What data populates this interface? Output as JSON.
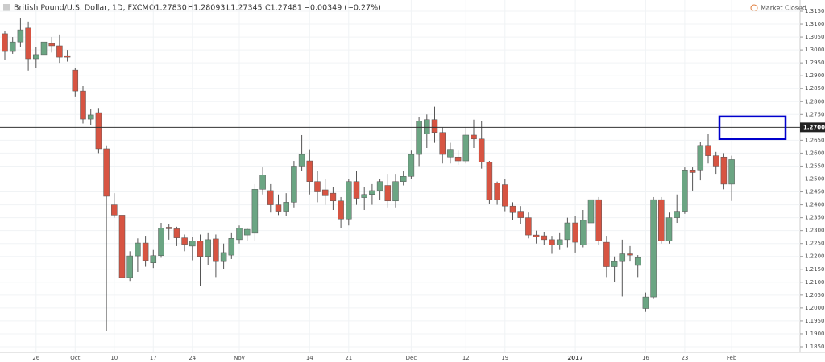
{
  "header": {
    "symbol": "British Pound/U.S. Dollar, 1D, FXCM",
    "open": "O1.27830",
    "high": "H1.28093",
    "low": "L1.27345",
    "close": "C1.27481",
    "change": "−0.00349 (−0.27%)",
    "status": "Market Closed"
  },
  "chart_data": {
    "type": "candlestick",
    "up_color": "#6ba583",
    "down_color": "#d75442",
    "grid": true,
    "ylim": [
      1.185,
      1.315
    ],
    "yticks": [
      {
        "value": 1.185,
        "label": "1.18500"
      },
      {
        "value": 1.19,
        "label": "1.19000"
      },
      {
        "value": 1.195,
        "label": "1.19500"
      },
      {
        "value": 1.2,
        "label": "1.20000"
      },
      {
        "value": 1.205,
        "label": "1.20500"
      },
      {
        "value": 1.21,
        "label": "1.21000"
      },
      {
        "value": 1.215,
        "label": "1.21500"
      },
      {
        "value": 1.22,
        "label": "1.22000"
      },
      {
        "value": 1.225,
        "label": "1.22500"
      },
      {
        "value": 1.23,
        "label": "1.23000"
      },
      {
        "value": 1.235,
        "label": "1.23500"
      },
      {
        "value": 1.24,
        "label": "1.24000"
      },
      {
        "value": 1.245,
        "label": "1.24500"
      },
      {
        "value": 1.25,
        "label": "1.25000"
      },
      {
        "value": 1.255,
        "label": "1.25500"
      },
      {
        "value": 1.26,
        "label": "1.26000"
      },
      {
        "value": 1.265,
        "label": "1.26500"
      },
      {
        "value": 1.275,
        "label": "1.27500"
      },
      {
        "value": 1.28,
        "label": "1.28000"
      },
      {
        "value": 1.285,
        "label": "1.28500"
      },
      {
        "value": 1.29,
        "label": "1.29000"
      },
      {
        "value": 1.295,
        "label": "1.29500"
      },
      {
        "value": 1.3,
        "label": "1.30000"
      },
      {
        "value": 1.305,
        "label": "1.30500"
      },
      {
        "value": 1.31,
        "label": "1.31000"
      },
      {
        "value": 1.315,
        "label": "1.31500"
      }
    ],
    "hline": {
      "value": 1.27,
      "label": "1.27000"
    },
    "zone": [
      1.2655,
      1.2742
    ],
    "categories": [
      null,
      null,
      null,
      null,
      "26",
      null,
      null,
      null,
      null,
      "Oct",
      null,
      null,
      null,
      null,
      "10",
      null,
      null,
      null,
      null,
      "17",
      null,
      null,
      null,
      null,
      "24",
      null,
      null,
      null,
      null,
      null,
      "Nov",
      null,
      null,
      null,
      null,
      null,
      null,
      null,
      null,
      "14",
      null,
      null,
      null,
      null,
      "21",
      null,
      null,
      null,
      null,
      null,
      null,
      null,
      "Dec",
      null,
      null,
      null,
      null,
      null,
      null,
      "12",
      null,
      null,
      null,
      null,
      "19",
      null,
      null,
      null,
      null,
      null,
      null,
      null,
      null,
      "2017",
      null,
      null,
      null,
      null,
      null,
      null,
      null,
      null,
      "16",
      null,
      null,
      null,
      null,
      "23",
      null,
      null,
      null,
      null,
      null,
      "Feb"
    ],
    "ohlc": [
      [
        1.3063,
        1.3075,
        1.296,
        1.2994
      ],
      [
        1.2994,
        1.305,
        1.2985,
        1.3031
      ],
      [
        1.3031,
        1.3125,
        1.301,
        1.3078
      ],
      [
        1.3085,
        1.311,
        1.292,
        1.2966
      ],
      [
        1.2966,
        1.301,
        1.293,
        1.2982
      ],
      [
        1.2982,
        1.304,
        1.296,
        1.3031
      ],
      [
        1.3025,
        1.305,
        1.299,
        1.3016
      ],
      [
        1.3016,
        1.306,
        1.295,
        1.2972
      ],
      [
        1.2978,
        1.3,
        1.2955,
        1.2972
      ],
      [
        1.2922,
        1.293,
        1.282,
        1.2841
      ],
      [
        1.2841,
        1.286,
        1.2715,
        1.2732
      ],
      [
        1.2732,
        1.277,
        1.271,
        1.2748
      ],
      [
        1.2757,
        1.2775,
        1.26,
        1.2617
      ],
      [
        1.2617,
        1.263,
        1.191,
        1.2433
      ],
      [
        1.24,
        1.2445,
        1.235,
        1.236
      ],
      [
        1.236,
        1.237,
        1.209,
        1.2118
      ],
      [
        1.2118,
        1.222,
        1.2105,
        1.2202
      ],
      [
        1.2202,
        1.227,
        1.214,
        1.2252
      ],
      [
        1.2252,
        1.228,
        1.216,
        1.2184
      ],
      [
        1.2175,
        1.2225,
        1.2155,
        1.2203
      ],
      [
        1.2203,
        1.233,
        1.2195,
        1.231
      ],
      [
        1.2313,
        1.2325,
        1.2265,
        1.2307
      ],
      [
        1.2307,
        1.2315,
        1.224,
        1.2272
      ],
      [
        1.2272,
        1.2285,
        1.222,
        1.2247
      ],
      [
        1.224,
        1.2275,
        1.2185,
        1.226
      ],
      [
        1.226,
        1.2285,
        1.2085,
        1.22
      ],
      [
        1.22,
        1.229,
        1.2165,
        1.2265
      ],
      [
        1.2268,
        1.2285,
        1.212,
        1.218
      ],
      [
        1.218,
        1.225,
        1.215,
        1.2215
      ],
      [
        1.2205,
        1.229,
        1.219,
        1.227
      ],
      [
        1.2265,
        1.232,
        1.225,
        1.231
      ],
      [
        1.2283,
        1.231,
        1.226,
        1.2305
      ],
      [
        1.229,
        1.248,
        1.226,
        1.246
      ],
      [
        1.246,
        1.2545,
        1.244,
        1.2515
      ],
      [
        1.2455,
        1.248,
        1.237,
        1.24
      ],
      [
        1.24,
        1.244,
        1.236,
        1.2375
      ],
      [
        1.2375,
        1.2445,
        1.2355,
        1.241
      ],
      [
        1.241,
        1.257,
        1.239,
        1.255
      ],
      [
        1.255,
        1.267,
        1.253,
        1.2595
      ],
      [
        1.257,
        1.2615,
        1.244,
        1.249
      ],
      [
        1.249,
        1.253,
        1.241,
        1.245
      ],
      [
        1.2458,
        1.25,
        1.24,
        1.2435
      ],
      [
        1.2445,
        1.247,
        1.238,
        1.2415
      ],
      [
        1.2415,
        1.243,
        1.231,
        1.2345
      ],
      [
        1.2345,
        1.25,
        1.232,
        1.249
      ],
      [
        1.249,
        1.253,
        1.24,
        1.2425
      ],
      [
        1.2428,
        1.247,
        1.238,
        1.244
      ],
      [
        1.244,
        1.248,
        1.24,
        1.2455
      ],
      [
        1.2455,
        1.25,
        1.242,
        1.249
      ],
      [
        1.2475,
        1.252,
        1.239,
        1.2415
      ],
      [
        1.2415,
        1.252,
        1.239,
        1.249
      ],
      [
        1.249,
        1.253,
        1.2475,
        1.251
      ],
      [
        1.251,
        1.261,
        1.25,
        1.2595
      ],
      [
        1.2595,
        1.274,
        1.255,
        1.2725
      ],
      [
        1.2675,
        1.275,
        1.262,
        1.273
      ],
      [
        1.273,
        1.278,
        1.264,
        1.268
      ],
      [
        1.268,
        1.27,
        1.256,
        1.2595
      ],
      [
        1.2585,
        1.264,
        1.256,
        1.2615
      ],
      [
        1.2585,
        1.261,
        1.2555,
        1.257
      ],
      [
        1.257,
        1.27,
        1.256,
        1.267
      ],
      [
        1.267,
        1.273,
        1.262,
        1.2655
      ],
      [
        1.2655,
        1.2725,
        1.254,
        1.2565
      ],
      [
        1.2565,
        1.257,
        1.2405,
        1.242
      ],
      [
        1.2485,
        1.249,
        1.24,
        1.242
      ],
      [
        1.2478,
        1.25,
        1.2375,
        1.2395
      ],
      [
        1.2395,
        1.241,
        1.234,
        1.237
      ],
      [
        1.2375,
        1.2395,
        1.2325,
        1.235
      ],
      [
        1.235,
        1.237,
        1.227,
        1.2283
      ],
      [
        1.2283,
        1.23,
        1.225,
        1.2275
      ],
      [
        1.228,
        1.2295,
        1.2245,
        1.2265
      ],
      [
        1.2265,
        1.228,
        1.221,
        1.2245
      ],
      [
        1.2245,
        1.229,
        1.2225,
        1.2265
      ],
      [
        1.2265,
        1.235,
        1.2235,
        1.233
      ],
      [
        1.233,
        1.2355,
        1.2215,
        1.2255
      ],
      [
        1.2245,
        1.238,
        1.2235,
        1.234
      ],
      [
        1.233,
        1.2435,
        1.232,
        1.242
      ],
      [
        1.242,
        1.243,
        1.2245,
        1.226
      ],
      [
        1.2255,
        1.228,
        1.212,
        1.216
      ],
      [
        1.216,
        1.22,
        1.21,
        1.218
      ],
      [
        1.218,
        1.2265,
        1.2045,
        1.221
      ],
      [
        1.221,
        1.224,
        1.218,
        1.2205
      ],
      [
        1.2165,
        1.2205,
        1.212,
        1.2195
      ],
      [
        1.1998,
        1.206,
        1.1985,
        1.2043
      ],
      [
        1.2043,
        1.243,
        1.2035,
        1.242
      ],
      [
        1.242,
        1.243,
        1.225,
        1.226
      ],
      [
        1.226,
        1.237,
        1.225,
        1.235
      ],
      [
        1.235,
        1.244,
        1.233,
        1.2375
      ],
      [
        1.2375,
        1.2545,
        1.2365,
        1.2535
      ],
      [
        1.2535,
        1.2545,
        1.2455,
        1.2525
      ],
      [
        1.2535,
        1.2645,
        1.2495,
        1.263
      ],
      [
        1.263,
        1.2675,
        1.256,
        1.259
      ],
      [
        1.259,
        1.2605,
        1.252,
        1.255
      ],
      [
        1.2585,
        1.26,
        1.246,
        1.248
      ],
      [
        1.248,
        1.259,
        1.2415,
        1.2575
      ]
    ]
  }
}
